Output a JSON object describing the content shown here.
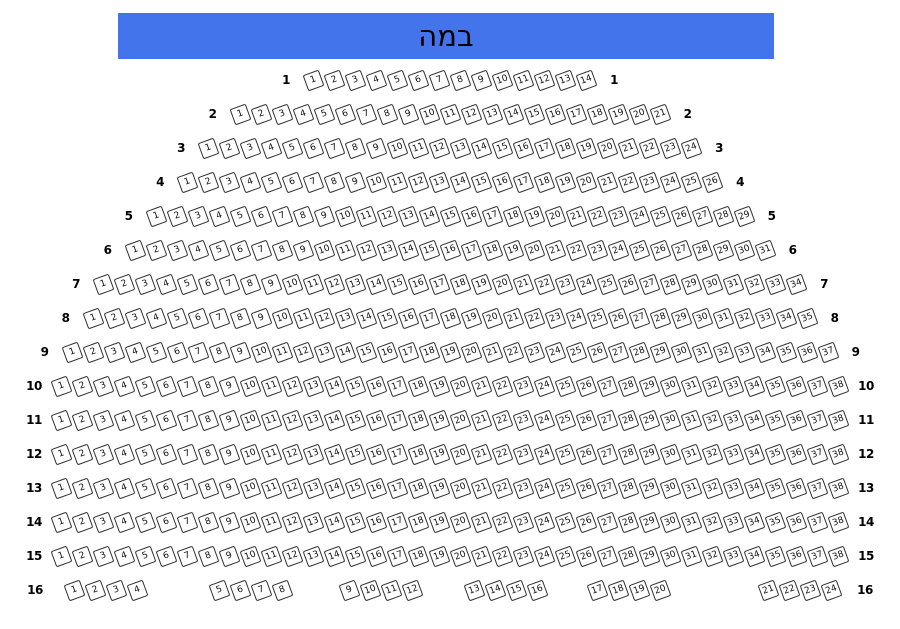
{
  "stage": {
    "label": "במה"
  },
  "colors": {
    "stage_bg": "#4374EB",
    "seat_fill": "#FFFFFF",
    "seat_border": "#2F2F2F",
    "text": "#000000"
  },
  "rows": [
    {
      "label": "1",
      "seats": [
        1,
        2,
        3,
        4,
        5,
        6,
        7,
        8,
        9,
        10,
        11,
        12,
        13,
        14
      ]
    },
    {
      "label": "2",
      "seats": [
        1,
        2,
        3,
        4,
        5,
        6,
        7,
        8,
        9,
        10,
        11,
        12,
        13,
        14,
        15,
        16,
        17,
        18,
        19,
        20,
        21
      ]
    },
    {
      "label": "3",
      "seats": [
        1,
        2,
        3,
        4,
        5,
        6,
        7,
        8,
        9,
        10,
        11,
        12,
        13,
        14,
        15,
        16,
        17,
        18,
        19,
        20,
        21,
        22,
        23,
        24
      ]
    },
    {
      "label": "4",
      "seats": [
        1,
        2,
        3,
        4,
        5,
        6,
        7,
        8,
        9,
        10,
        11,
        12,
        13,
        14,
        15,
        16,
        17,
        18,
        19,
        20,
        21,
        22,
        23,
        24,
        25,
        26
      ]
    },
    {
      "label": "5",
      "seats": [
        1,
        2,
        3,
        4,
        5,
        6,
        7,
        8,
        9,
        10,
        11,
        12,
        13,
        14,
        15,
        16,
        17,
        18,
        19,
        20,
        21,
        22,
        23,
        24,
        25,
        26,
        27,
        28,
        29
      ]
    },
    {
      "label": "6",
      "seats": [
        1,
        2,
        3,
        4,
        5,
        6,
        7,
        8,
        9,
        10,
        11,
        12,
        13,
        14,
        15,
        16,
        17,
        18,
        19,
        20,
        21,
        22,
        23,
        24,
        25,
        26,
        27,
        28,
        29,
        30,
        31
      ]
    },
    {
      "label": "7",
      "seats": [
        1,
        2,
        3,
        4,
        5,
        6,
        7,
        8,
        9,
        10,
        11,
        12,
        13,
        14,
        15,
        16,
        17,
        18,
        19,
        20,
        21,
        22,
        23,
        24,
        25,
        26,
        27,
        28,
        29,
        30,
        31,
        32,
        33,
        34
      ]
    },
    {
      "label": "8",
      "seats": [
        1,
        2,
        3,
        4,
        5,
        6,
        7,
        8,
        9,
        10,
        11,
        12,
        13,
        14,
        15,
        16,
        17,
        18,
        19,
        20,
        21,
        22,
        23,
        24,
        25,
        26,
        27,
        28,
        29,
        30,
        31,
        32,
        33,
        34,
        35
      ]
    },
    {
      "label": "9",
      "seats": [
        1,
        2,
        3,
        4,
        5,
        6,
        7,
        8,
        9,
        10,
        11,
        12,
        13,
        14,
        15,
        16,
        17,
        18,
        19,
        20,
        21,
        22,
        23,
        24,
        25,
        26,
        27,
        28,
        29,
        30,
        31,
        32,
        33,
        34,
        35,
        36,
        37
      ]
    },
    {
      "label": "10",
      "seats": [
        1,
        2,
        3,
        4,
        5,
        6,
        7,
        8,
        9,
        10,
        11,
        12,
        13,
        14,
        15,
        16,
        17,
        18,
        19,
        20,
        21,
        22,
        23,
        24,
        25,
        26,
        27,
        28,
        29,
        30,
        31,
        32,
        33,
        34,
        35,
        36,
        37,
        38
      ]
    },
    {
      "label": "11",
      "seats": [
        1,
        2,
        3,
        4,
        5,
        6,
        7,
        8,
        9,
        10,
        11,
        12,
        13,
        14,
        15,
        16,
        17,
        18,
        19,
        20,
        21,
        22,
        23,
        24,
        25,
        26,
        27,
        28,
        29,
        30,
        31,
        32,
        33,
        34,
        35,
        36,
        37,
        38
      ]
    },
    {
      "label": "12",
      "seats": [
        1,
        2,
        3,
        4,
        5,
        6,
        7,
        8,
        9,
        10,
        11,
        12,
        13,
        14,
        15,
        16,
        17,
        18,
        19,
        20,
        21,
        22,
        23,
        24,
        25,
        26,
        27,
        28,
        29,
        30,
        31,
        32,
        33,
        34,
        35,
        36,
        37,
        38
      ]
    },
    {
      "label": "13",
      "seats": [
        1,
        2,
        3,
        4,
        5,
        6,
        7,
        8,
        9,
        10,
        11,
        12,
        13,
        14,
        15,
        16,
        17,
        18,
        19,
        20,
        21,
        22,
        23,
        24,
        25,
        26,
        27,
        28,
        29,
        30,
        31,
        32,
        33,
        34,
        35,
        36,
        37,
        38
      ]
    },
    {
      "label": "14",
      "seats": [
        1,
        2,
        3,
        4,
        5,
        6,
        7,
        8,
        9,
        10,
        11,
        12,
        13,
        14,
        15,
        16,
        17,
        18,
        19,
        20,
        21,
        22,
        23,
        24,
        25,
        26,
        27,
        28,
        29,
        30,
        31,
        32,
        33,
        34,
        35,
        36,
        37,
        38
      ]
    },
    {
      "label": "15",
      "seats": [
        1,
        2,
        3,
        4,
        5,
        6,
        7,
        8,
        9,
        10,
        11,
        12,
        13,
        14,
        15,
        16,
        17,
        18,
        19,
        20,
        21,
        22,
        23,
        24,
        25,
        26,
        27,
        28,
        29,
        30,
        31,
        32,
        33,
        34,
        35,
        36,
        37,
        38
      ]
    },
    {
      "label": "16",
      "groups": [
        [
          1,
          2,
          3,
          4
        ],
        [
          5,
          6,
          7,
          8
        ],
        [
          9,
          10,
          11,
          12
        ],
        [
          13,
          14,
          15,
          16
        ],
        [
          17,
          18,
          19,
          20
        ],
        [
          21,
          22,
          23,
          24
        ]
      ]
    }
  ]
}
